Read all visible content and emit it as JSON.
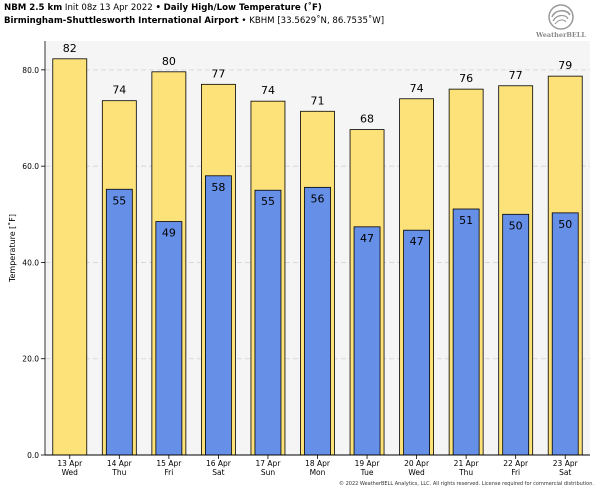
{
  "header": {
    "model": "NBM 2.5 km",
    "init": "Init 08z 13 Apr 2022",
    "sep1": "•",
    "title": "Daily High/Low Temperature (˚F)",
    "station_name": "Birmingham-Shuttlesworth International Airport",
    "sep2": "•",
    "station_code": "KBHM [33.5629˚N, 86.7535˚W]"
  },
  "logo": {
    "text": "WeatherBELL",
    "icon": "weatherbell-swirl-logo"
  },
  "copyright": "© 2022 WeatherBELL Analytics, LLC. All rights reserved. License required for commercial distribution.",
  "colors": {
    "high": "#fde27a",
    "low": "#6690e8",
    "plot_bg": "#f5f5f5",
    "grid": "#d3d3d3"
  },
  "chart_data": {
    "type": "bar",
    "title": "Daily High/Low Temperature (˚F)",
    "ylabel": "Temperature [˚F]",
    "ylim": [
      0,
      86
    ],
    "yticks": [
      "0.0",
      "20.0",
      "40.0",
      "60.0",
      "80.0"
    ],
    "ytick_values": [
      0,
      20,
      40,
      60,
      80
    ],
    "grid": true,
    "categories": [
      {
        "date": "13 Apr",
        "day": "Wed"
      },
      {
        "date": "14 Apr",
        "day": "Thu"
      },
      {
        "date": "15 Apr",
        "day": "Fri"
      },
      {
        "date": "16 Apr",
        "day": "Sat"
      },
      {
        "date": "17 Apr",
        "day": "Sun"
      },
      {
        "date": "18 Apr",
        "day": "Mon"
      },
      {
        "date": "19 Apr",
        "day": "Tue"
      },
      {
        "date": "20 Apr",
        "day": "Wed"
      },
      {
        "date": "21 Apr",
        "day": "Thu"
      },
      {
        "date": "22 Apr",
        "day": "Fri"
      },
      {
        "date": "23 Apr",
        "day": "Sat"
      }
    ],
    "high_values": [
      82.3,
      73.6,
      79.6,
      77.0,
      73.5,
      71.4,
      67.6,
      74.0,
      76.0,
      76.7,
      78.7
    ],
    "high_labels": [
      "82",
      "74",
      "80",
      "77",
      "74",
      "71",
      "68",
      "74",
      "76",
      "77",
      "79"
    ],
    "low_values": [
      null,
      55.2,
      48.5,
      58.0,
      55.0,
      55.6,
      47.4,
      46.7,
      51.1,
      50.0,
      50.3
    ],
    "low_labels": [
      "",
      "55",
      "49",
      "58",
      "55",
      "56",
      "47",
      "47",
      "51",
      "50",
      "50"
    ]
  }
}
